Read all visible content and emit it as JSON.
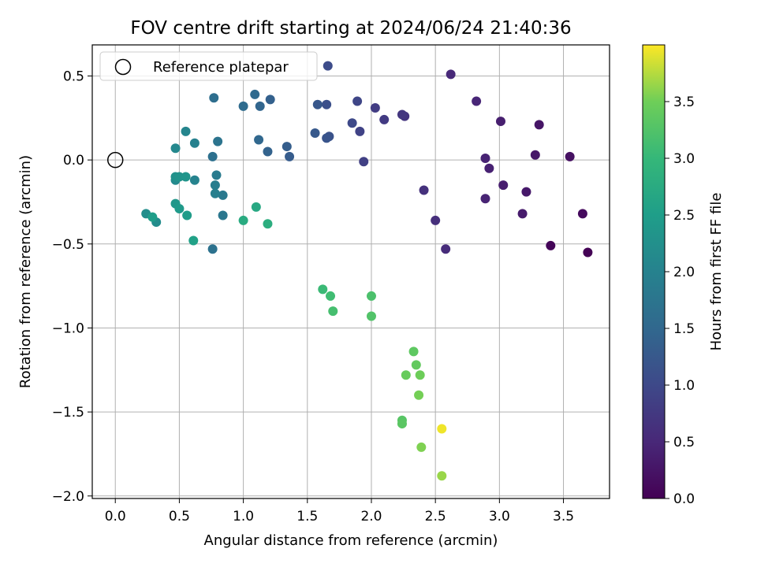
{
  "chart_data": {
    "type": "scatter",
    "title": "FOV centre drift starting at 2024/06/24 21:40:36",
    "xlabel": "Angular distance from reference (arcmin)",
    "ylabel": "Rotation from reference (arcmin)",
    "xlim": [
      -0.18,
      3.86
    ],
    "ylim": [
      -2.015,
      0.685
    ],
    "xticks": [
      0.0,
      0.5,
      1.0,
      1.5,
      2.0,
      2.5,
      3.0,
      3.5
    ],
    "xtick_labels": [
      "0.0",
      "0.5",
      "1.0",
      "1.5",
      "2.0",
      "2.5",
      "3.0",
      "3.5"
    ],
    "yticks": [
      0.5,
      0.0,
      -0.5,
      -1.0,
      -1.5,
      -2.0
    ],
    "ytick_labels": [
      "0.5",
      "0.0",
      "−0.5",
      "−1.0",
      "−1.5",
      "−2.0"
    ],
    "grid": true,
    "legend": {
      "position": "top-left",
      "entries": [
        "Reference platepar"
      ]
    },
    "reference_point": {
      "x": 0.0,
      "y": 0.0
    },
    "colorbar": {
      "label": "Hours from first FF file",
      "range": [
        0.0,
        4.0
      ],
      "ticks": [
        0.0,
        0.5,
        1.0,
        1.5,
        2.0,
        2.5,
        3.0,
        3.5
      ],
      "tick_labels": [
        "0.0",
        "0.5",
        "1.0",
        "1.5",
        "2.0",
        "2.5",
        "3.0",
        "3.5"
      ],
      "colormap": "viridis"
    },
    "points": [
      {
        "x": 3.69,
        "y": -0.55,
        "t": 0.02
      },
      {
        "x": 3.4,
        "y": -0.51,
        "t": 0.05
      },
      {
        "x": 3.65,
        "y": -0.32,
        "t": 0.12
      },
      {
        "x": 3.55,
        "y": 0.02,
        "t": 0.2
      },
      {
        "x": 3.31,
        "y": 0.21,
        "t": 0.25
      },
      {
        "x": 3.28,
        "y": 0.03,
        "t": 0.28
      },
      {
        "x": 3.21,
        "y": -0.19,
        "t": 0.3
      },
      {
        "x": 3.18,
        "y": -0.32,
        "t": 0.33
      },
      {
        "x": 3.03,
        "y": -0.15,
        "t": 0.36
      },
      {
        "x": 3.01,
        "y": 0.23,
        "t": 0.38
      },
      {
        "x": 2.92,
        "y": -0.05,
        "t": 0.41
      },
      {
        "x": 2.89,
        "y": 0.01,
        "t": 0.43
      },
      {
        "x": 2.89,
        "y": -0.23,
        "t": 0.45
      },
      {
        "x": 2.82,
        "y": 0.35,
        "t": 0.48
      },
      {
        "x": 2.62,
        "y": 0.51,
        "t": 0.52
      },
      {
        "x": 2.58,
        "y": -0.53,
        "t": 0.56
      },
      {
        "x": 2.5,
        "y": -0.36,
        "t": 0.6
      },
      {
        "x": 2.41,
        "y": -0.18,
        "t": 0.63
      },
      {
        "x": 2.26,
        "y": 0.26,
        "t": 0.68
      },
      {
        "x": 2.24,
        "y": 0.27,
        "t": 0.72
      },
      {
        "x": 2.1,
        "y": 0.24,
        "t": 0.78
      },
      {
        "x": 2.03,
        "y": 0.31,
        "t": 0.82
      },
      {
        "x": 1.94,
        "y": -0.01,
        "t": 0.86
      },
      {
        "x": 1.91,
        "y": 0.17,
        "t": 0.9
      },
      {
        "x": 1.89,
        "y": 0.35,
        "t": 0.95
      },
      {
        "x": 1.85,
        "y": 0.22,
        "t": 1.0
      },
      {
        "x": 1.66,
        "y": 0.56,
        "t": 1.05
      },
      {
        "x": 1.65,
        "y": 0.33,
        "t": 1.1
      },
      {
        "x": 1.67,
        "y": 0.14,
        "t": 1.14
      },
      {
        "x": 1.65,
        "y": 0.13,
        "t": 1.18
      },
      {
        "x": 1.58,
        "y": 0.33,
        "t": 1.22
      },
      {
        "x": 1.56,
        "y": 0.16,
        "t": 1.26
      },
      {
        "x": 1.36,
        "y": 0.02,
        "t": 1.3
      },
      {
        "x": 1.34,
        "y": 0.08,
        "t": 1.34
      },
      {
        "x": 1.21,
        "y": 0.36,
        "t": 1.38
      },
      {
        "x": 1.19,
        "y": 0.05,
        "t": 1.42
      },
      {
        "x": 1.13,
        "y": 0.32,
        "t": 1.46
      },
      {
        "x": 1.12,
        "y": 0.12,
        "t": 1.5
      },
      {
        "x": 1.09,
        "y": 0.39,
        "t": 1.54
      },
      {
        "x": 1.0,
        "y": 0.32,
        "t": 1.58
      },
      {
        "x": 0.77,
        "y": 0.37,
        "t": 1.62
      },
      {
        "x": 0.76,
        "y": 0.02,
        "t": 1.66
      },
      {
        "x": 0.76,
        "y": -0.53,
        "t": 1.7
      },
      {
        "x": 0.8,
        "y": 0.11,
        "t": 1.74
      },
      {
        "x": 0.84,
        "y": -0.33,
        "t": 1.78
      },
      {
        "x": 0.84,
        "y": -0.21,
        "t": 1.82
      },
      {
        "x": 0.79,
        "y": -0.09,
        "t": 1.86
      },
      {
        "x": 0.78,
        "y": -0.15,
        "t": 1.9
      },
      {
        "x": 0.78,
        "y": -0.2,
        "t": 1.94
      },
      {
        "x": 0.62,
        "y": 0.1,
        "t": 1.98
      },
      {
        "x": 0.62,
        "y": -0.12,
        "t": 2.02
      },
      {
        "x": 0.55,
        "y": 0.17,
        "t": 2.06
      },
      {
        "x": 0.47,
        "y": 0.07,
        "t": 2.1
      },
      {
        "x": 0.47,
        "y": -0.12,
        "t": 2.14
      },
      {
        "x": 0.32,
        "y": -0.37,
        "t": 2.18
      },
      {
        "x": 0.24,
        "y": -0.32,
        "t": 2.22
      },
      {
        "x": 0.47,
        "y": -0.1,
        "t": 2.26
      },
      {
        "x": 0.5,
        "y": -0.1,
        "t": 2.3
      },
      {
        "x": 0.55,
        "y": -0.1,
        "t": 2.34
      },
      {
        "x": 0.47,
        "y": -0.26,
        "t": 2.38
      },
      {
        "x": 0.5,
        "y": -0.29,
        "t": 2.42
      },
      {
        "x": 0.56,
        "y": -0.33,
        "t": 2.46
      },
      {
        "x": 0.29,
        "y": -0.34,
        "t": 2.5
      },
      {
        "x": 0.61,
        "y": -0.48,
        "t": 2.55
      },
      {
        "x": 1.1,
        "y": -0.28,
        "t": 2.7
      },
      {
        "x": 1.0,
        "y": -0.36,
        "t": 2.75
      },
      {
        "x": 1.19,
        "y": -0.38,
        "t": 2.8
      },
      {
        "x": 1.62,
        "y": -0.77,
        "t": 3.05
      },
      {
        "x": 1.68,
        "y": -0.81,
        "t": 3.1
      },
      {
        "x": 1.7,
        "y": -0.9,
        "t": 3.15
      },
      {
        "x": 2.0,
        "y": -0.81,
        "t": 3.2
      },
      {
        "x": 2.0,
        "y": -0.93,
        "t": 3.25
      },
      {
        "x": 2.24,
        "y": -1.55,
        "t": 3.3
      },
      {
        "x": 2.24,
        "y": -1.57,
        "t": 3.33
      },
      {
        "x": 2.33,
        "y": -1.14,
        "t": 3.36
      },
      {
        "x": 2.35,
        "y": -1.22,
        "t": 3.4
      },
      {
        "x": 2.27,
        "y": -1.28,
        "t": 3.44
      },
      {
        "x": 2.38,
        "y": -1.28,
        "t": 3.48
      },
      {
        "x": 2.37,
        "y": -1.4,
        "t": 3.52
      },
      {
        "x": 2.39,
        "y": -1.71,
        "t": 3.56
      },
      {
        "x": 2.55,
        "y": -1.88,
        "t": 3.65
      },
      {
        "x": 2.55,
        "y": -1.6,
        "t": 3.95
      }
    ]
  }
}
